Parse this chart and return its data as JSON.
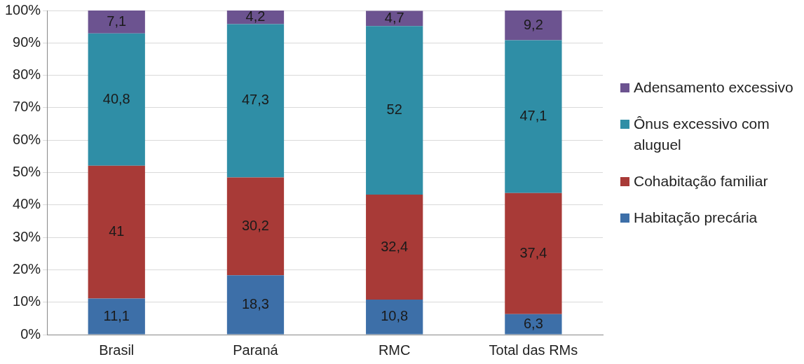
{
  "chart_data": {
    "type": "bar",
    "stacked": true,
    "categories": [
      "Brasil",
      "Paraná",
      "RMC",
      "Total das RMs"
    ],
    "series": [
      {
        "name": "Habitação precária",
        "color": "#3d6fa8",
        "values": [
          11.1,
          18.3,
          10.8,
          6.3
        ],
        "value_labels": [
          "11,1",
          "18,3",
          "10,8",
          "6,3"
        ]
      },
      {
        "name": "Cohabitação familiar",
        "color": "#a83a37",
        "values": [
          41,
          30.2,
          32.4,
          37.4
        ],
        "value_labels": [
          "41",
          "30,2",
          "32,4",
          "37,4"
        ]
      },
      {
        "name": "Ônus excessivo com aluguel",
        "color": "#2f8ea6",
        "values": [
          40.8,
          47.3,
          52,
          47.1
        ],
        "value_labels": [
          "40,8",
          "47,3",
          "52",
          "47,1"
        ]
      },
      {
        "name": "Adensamento excessivo",
        "color": "#6c5390",
        "values": [
          7.1,
          4.2,
          4.7,
          9.2
        ],
        "value_labels": [
          "7,1",
          "4,2",
          "4,7",
          "9,2"
        ]
      }
    ],
    "ylim": [
      0,
      100
    ],
    "yticks": [
      {
        "value": 0,
        "label": "0%"
      },
      {
        "value": 10,
        "label": "10%"
      },
      {
        "value": 20,
        "label": "20%"
      },
      {
        "value": 30,
        "label": "30%"
      },
      {
        "value": 40,
        "label": "40%"
      },
      {
        "value": 50,
        "label": "50%"
      },
      {
        "value": 60,
        "label": "60%"
      },
      {
        "value": 70,
        "label": "70%"
      },
      {
        "value": 80,
        "label": "80%"
      },
      {
        "value": 90,
        "label": "90%"
      },
      {
        "value": 100,
        "label": "100%"
      }
    ],
    "grid": "y",
    "legend": "right"
  }
}
